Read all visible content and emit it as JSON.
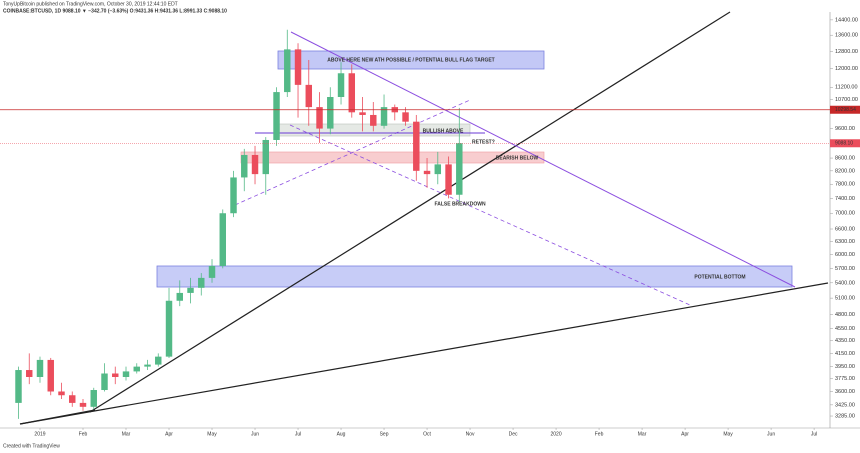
{
  "chart_data": {
    "type": "candlestick",
    "subtitle": "TonyUpBitcoin published on TradingView.com, October 30, 2019 12:44:10 EDT",
    "title": "COINBASE:BTCUSD, 1D  9088.10 ▼ −342.70 (−3.63%)  O:9431.36  H:9431.36  L:8991.33  C:9088.10",
    "credit": "Created with TradingView",
    "log_scale": true,
    "grid": false,
    "up_color": "#53b987",
    "down_color": "#eb4d5c",
    "xlim": [
      -0.93,
      18.37
    ],
    "xticks": [
      {
        "value": 0,
        "label": "2019"
      },
      {
        "value": 1,
        "label": "Feb"
      },
      {
        "value": 2,
        "label": "Mar"
      },
      {
        "value": 3,
        "label": "Apr"
      },
      {
        "value": 4,
        "label": "May"
      },
      {
        "value": 5,
        "label": "Jun"
      },
      {
        "value": 6,
        "label": "Jul"
      },
      {
        "value": 7,
        "label": "Aug"
      },
      {
        "value": 8,
        "label": "Sep"
      },
      {
        "value": 9,
        "label": "Oct"
      },
      {
        "value": 10,
        "label": "Nov"
      },
      {
        "value": 11,
        "label": "Dec"
      },
      {
        "value": 12,
        "label": "2020"
      },
      {
        "value": 13,
        "label": "Feb"
      },
      {
        "value": 14,
        "label": "Mar"
      },
      {
        "value": 15,
        "label": "Apr"
      },
      {
        "value": 16,
        "label": "May"
      },
      {
        "value": 17,
        "label": "Jun"
      },
      {
        "value": 18,
        "label": "Jul"
      }
    ],
    "ylim": [
      3177,
      14830
    ],
    "yticks": [
      {
        "value": 14400,
        "label": "14400.00"
      },
      {
        "value": 13600,
        "label": "13600.00"
      },
      {
        "value": 12800,
        "label": "12800.00"
      },
      {
        "value": 12000,
        "label": "12000.00"
      },
      {
        "value": 11200,
        "label": "11200.00"
      },
      {
        "value": 10700,
        "label": "10700.00"
      },
      {
        "value": 9600,
        "label": "9600.00"
      },
      {
        "value": 8600,
        "label": "8600.00"
      },
      {
        "value": 8200,
        "label": "8200.00"
      },
      {
        "value": 7800,
        "label": "7800.00"
      },
      {
        "value": 7400,
        "label": "7400.00"
      },
      {
        "value": 7000,
        "label": "7000.00"
      },
      {
        "value": 6600,
        "label": "6600.00"
      },
      {
        "value": 6300,
        "label": "6300.00"
      },
      {
        "value": 6000,
        "label": "6000.00"
      },
      {
        "value": 5700,
        "label": "5700.00"
      },
      {
        "value": 5400,
        "label": "5400.00"
      },
      {
        "value": 5100,
        "label": "5100.00"
      },
      {
        "value": 4800,
        "label": "4800.00"
      },
      {
        "value": 4550,
        "label": "4550.00"
      },
      {
        "value": 4350,
        "label": "4350.00"
      },
      {
        "value": 4150,
        "label": "4150.00"
      },
      {
        "value": 3950,
        "label": "3950.00"
      },
      {
        "value": 3775,
        "label": "3775.00"
      },
      {
        "value": 3600,
        "label": "3600.00"
      },
      {
        "value": 3425,
        "label": "3425.00"
      },
      {
        "value": 3285,
        "label": "3285.00"
      }
    ],
    "price_lines": [
      {
        "value": 10298.54,
        "label": "10298.54",
        "color": "#c62828"
      },
      {
        "value": 9088.1,
        "label": "9088.10",
        "color": "#eb4d5c"
      }
    ],
    "x": [
      -0.5,
      -0.25,
      0,
      0.25,
      0.5,
      0.75,
      1,
      1.25,
      1.5,
      1.75,
      2,
      2.25,
      2.5,
      2.75,
      3,
      3.25,
      3.5,
      3.75,
      4,
      4.25,
      4.5,
      4.75,
      5,
      5.25,
      5.5,
      5.75,
      6,
      6.25,
      6.5,
      6.75,
      7,
      7.25,
      7.5,
      7.75,
      8,
      8.25,
      8.5,
      8.75,
      9,
      9.25,
      9.5,
      9.75
    ],
    "open": [
      3450,
      3900,
      3800,
      4050,
      3600,
      3550,
      3450,
      3400,
      3620,
      3850,
      3800,
      3880,
      3950,
      3980,
      4100,
      5050,
      5200,
      5300,
      5500,
      5750,
      7000,
      8000,
      8700,
      8100,
      9200,
      11000,
      12900,
      11300,
      10400,
      9600,
      10800,
      11800,
      10200,
      10100,
      9700,
      10400,
      10200,
      9850,
      8200,
      8100,
      8400,
      7500
    ],
    "high": [
      3950,
      4150,
      4100,
      4080,
      3720,
      3600,
      3500,
      3650,
      4000,
      3950,
      3950,
      4000,
      4050,
      4150,
      5300,
      5450,
      5500,
      5600,
      5900,
      7100,
      8200,
      8900,
      9000,
      9300,
      11200,
      13880,
      13200,
      12400,
      11000,
      11200,
      12300,
      12200,
      10800,
      10600,
      10900,
      10500,
      10400,
      10100,
      8600,
      8800,
      8650,
      10370
    ],
    "low": [
      3250,
      3700,
      3720,
      3550,
      3500,
      3400,
      3350,
      3370,
      3600,
      3700,
      3750,
      3850,
      3900,
      3950,
      4080,
      4950,
      5000,
      5150,
      5400,
      5700,
      6900,
      7600,
      7800,
      7500,
      9000,
      10800,
      10000,
      9700,
      9100,
      9400,
      10500,
      10000,
      9500,
      9500,
      9600,
      9900,
      9700,
      7900,
      7700,
      7800,
      7400,
      7300
    ],
    "close": [
      3900,
      3800,
      4050,
      3600,
      3550,
      3450,
      3400,
      3620,
      3850,
      3800,
      3880,
      3950,
      3980,
      4100,
      5050,
      5200,
      5300,
      5500,
      5750,
      7000,
      8000,
      8700,
      8100,
      9200,
      11000,
      12900,
      11300,
      10400,
      9600,
      10800,
      11800,
      10200,
      10100,
      9700,
      10400,
      10200,
      9850,
      8200,
      8100,
      8400,
      7500,
      9088.1
    ],
    "annotations": [
      {
        "text": "ABOVE HERE NEW ATH POSSIBLE / POTENTIAL BULL FLAG TARGET",
        "color": "#1a237e"
      },
      {
        "text": "BULLISH ABOVE",
        "color": "#4caf50"
      },
      {
        "text": "BEARISH BELOW",
        "color": "#e53935"
      },
      {
        "text": "RETEST?",
        "color": "#111111"
      },
      {
        "text": "FALSE BREAKDOWN",
        "color": "#111111"
      },
      {
        "text": "POTENTIAL BOTTOM",
        "color": "#1a237e"
      }
    ]
  }
}
